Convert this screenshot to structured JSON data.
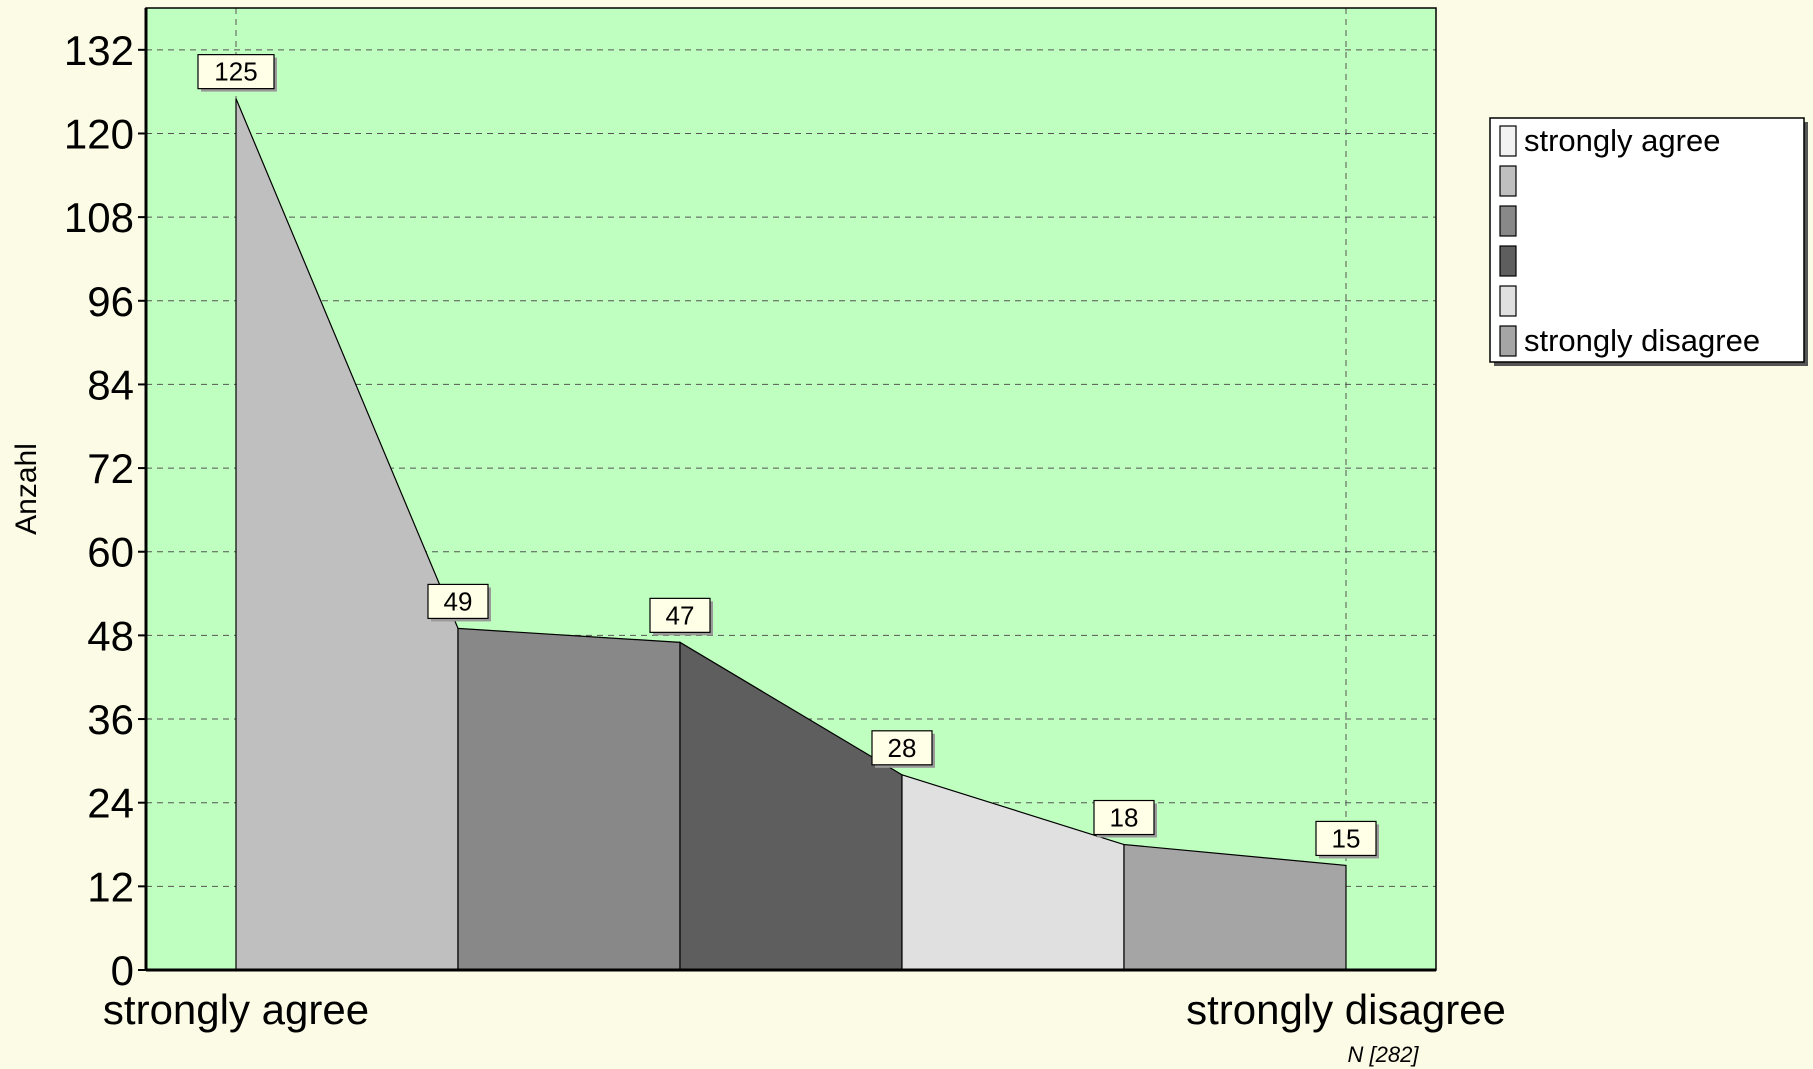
{
  "chart_data": {
    "type": "area",
    "categories": [
      "strongly agree",
      "",
      "",
      "",
      "",
      "strongly disagree"
    ],
    "values": [
      125,
      49,
      47,
      28,
      18,
      15
    ],
    "ylabel": "Anzahl",
    "ylim": [
      0,
      138
    ],
    "yticks": [
      0,
      12,
      24,
      36,
      48,
      60,
      72,
      84,
      96,
      108,
      120,
      132
    ],
    "x_tick_labels": [
      "strongly agree",
      "strongly disagree"
    ],
    "grid": true,
    "legend_position": "right",
    "legend": [
      {
        "label": "strongly agree",
        "color": "#f2f2f2"
      },
      {
        "label": "",
        "color": "#bfbfbf"
      },
      {
        "label": "",
        "color": "#888888"
      },
      {
        "label": "",
        "color": "#5e5e5e"
      },
      {
        "label": "",
        "color": "#e0e0e0"
      },
      {
        "label": "strongly disagree",
        "color": "#a5a5a5"
      }
    ],
    "segment_colors": [
      "#bfbfbf",
      "#888888",
      "#5e5e5e",
      "#e0e0e0",
      "#a5a5a5"
    ],
    "plot_background": "#bfffbf",
    "page_background": "#fcfce6",
    "n_label": "N [282]"
  }
}
